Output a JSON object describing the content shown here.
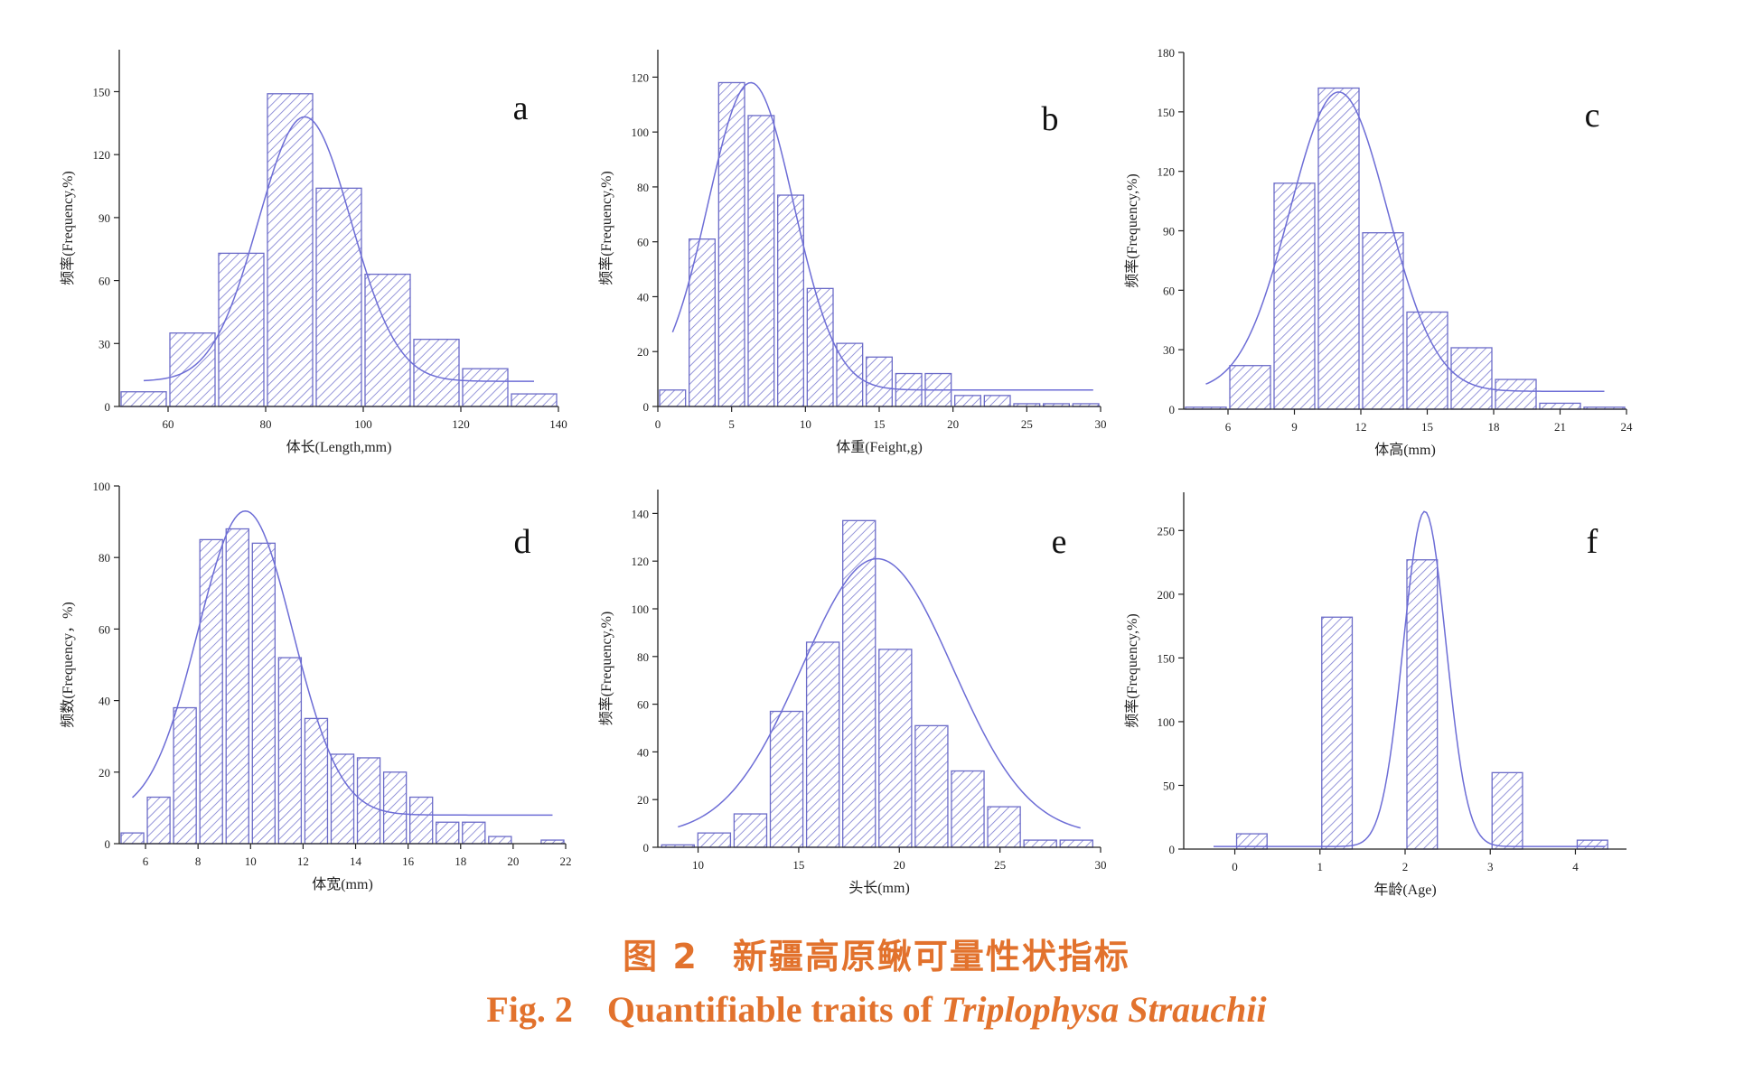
{
  "figure": {
    "caption_cn": {
      "label": "图 2",
      "text": "新疆高原鳅可量性状指标"
    },
    "caption_en": {
      "label": "Fig. 2",
      "text_plain": "Quantifiable traits of",
      "text_italic": "Triplophysa Strauchii"
    },
    "colors": {
      "bar_stroke": "#6b6bc8",
      "hatch": "#7b7bd0",
      "fit_curve": "#6d6dd6"
    }
  },
  "chart_data": [
    {
      "type": "bar",
      "panel": "a",
      "xlabel": "体长(Length,mm)",
      "ylabel": "频率(Frequency,%)",
      "xlim": [
        50,
        140
      ],
      "ylim": [
        0,
        170
      ],
      "xticks": [
        60,
        80,
        100,
        120,
        140
      ],
      "yticks": [
        0,
        30,
        60,
        90,
        120,
        150
      ],
      "bin_width": 10,
      "x": [
        55,
        65,
        75,
        85,
        95,
        105,
        115,
        125,
        135
      ],
      "values": [
        7,
        35,
        73,
        149,
        104,
        63,
        32,
        18,
        6
      ],
      "fit": {
        "type": "gauss",
        "y0": 12,
        "xc": 88,
        "w": 19,
        "A": 126,
        "range": [
          55,
          135
        ]
      }
    },
    {
      "type": "bar",
      "panel": "b",
      "xlabel": "体重(Feight,g)",
      "ylabel": "频率(Frequency,%)",
      "xlim": [
        0,
        30
      ],
      "ylim": [
        0,
        130
      ],
      "xticks": [
        0,
        5,
        10,
        15,
        20,
        25,
        30
      ],
      "yticks": [
        0,
        20,
        40,
        60,
        80,
        100,
        120
      ],
      "bin_width": 2,
      "x": [
        1,
        3,
        5,
        7,
        9,
        11,
        13,
        15,
        17,
        19,
        21,
        23,
        25,
        27,
        29
      ],
      "values": [
        6,
        61,
        118,
        106,
        77,
        43,
        23,
        18,
        12,
        12,
        4,
        4,
        1,
        1,
        1
      ],
      "fit": {
        "type": "gauss",
        "y0": 6,
        "xc": 6.3,
        "w": 5.8,
        "A": 112,
        "range": [
          1,
          29.5
        ]
      }
    },
    {
      "type": "bar",
      "panel": "c",
      "xlabel": "体高(mm)",
      "ylabel": "频率(Frequency,%)",
      "xlim": [
        4,
        24
      ],
      "ylim": [
        0,
        180
      ],
      "xticks": [
        6,
        9,
        12,
        15,
        18,
        21,
        24
      ],
      "yticks": [
        0,
        30,
        60,
        90,
        120,
        150,
        180
      ],
      "bin_width": 2,
      "x": [
        5,
        7,
        9,
        11,
        13,
        15,
        17,
        19,
        21,
        23
      ],
      "values": [
        1,
        22,
        114,
        162,
        89,
        49,
        31,
        15,
        3,
        1
      ],
      "fit": {
        "type": "gauss",
        "y0": 9,
        "xc": 11,
        "w": 4.4,
        "A": 151,
        "range": [
          5,
          23
        ]
      }
    },
    {
      "type": "bar",
      "panel": "d",
      "xlabel": "体宽(mm)",
      "ylabel": "频数(Frequency，%)",
      "xlim": [
        5,
        22
      ],
      "ylim": [
        0,
        100
      ],
      "xticks": [
        6,
        8,
        10,
        12,
        14,
        16,
        18,
        20,
        22
      ],
      "yticks": [
        0,
        20,
        40,
        60,
        80,
        100
      ],
      "bin_width": 1,
      "x": [
        5.5,
        6.5,
        7.5,
        8.5,
        9.5,
        10.5,
        11.5,
        12.5,
        13.5,
        14.5,
        15.5,
        16.5,
        17.5,
        18.5,
        19.5,
        21.5
      ],
      "values": [
        3,
        13,
        38,
        85,
        88,
        84,
        52,
        35,
        25,
        24,
        20,
        13,
        6,
        6,
        2,
        1
      ],
      "fit": {
        "type": "gauss",
        "y0": 8,
        "xc": 9.8,
        "w": 3.6,
        "A": 85,
        "range": [
          5.5,
          21.5
        ]
      }
    },
    {
      "type": "bar",
      "panel": "e",
      "xlabel": "头长(mm)",
      "ylabel": "频率(Frequency,%)",
      "xlim": [
        8,
        30
      ],
      "ylim": [
        0,
        150
      ],
      "xticks": [
        10,
        15,
        20,
        25,
        30
      ],
      "yticks": [
        0,
        20,
        40,
        60,
        80,
        100,
        120,
        140
      ],
      "bin_width": 1.8,
      "x": [
        9,
        10.8,
        12.6,
        14.4,
        16.2,
        18,
        19.8,
        21.6,
        23.4,
        25.2,
        27,
        28.8
      ],
      "values": [
        1,
        6,
        14,
        57,
        86,
        137,
        83,
        51,
        32,
        17,
        3,
        3
      ],
      "fit": {
        "type": "gauss",
        "y0": 5,
        "xc": 18.9,
        "w": 7.5,
        "A": 116,
        "range": [
          9,
          29
        ]
      }
    },
    {
      "type": "bar",
      "panel": "f",
      "xlabel": "年龄(Age)",
      "ylabel": "频率(Frequency,%)",
      "xlim": [
        -0.6,
        4.6
      ],
      "ylim": [
        0,
        280
      ],
      "xticks": [
        0,
        1,
        2,
        3,
        4
      ],
      "yticks": [
        0,
        50,
        100,
        150,
        200,
        250
      ],
      "bin_width": 0.4,
      "x": [
        0.2,
        1.2,
        2.2,
        3.2,
        4.2
      ],
      "values": [
        12,
        182,
        227,
        60,
        7
      ],
      "fit": {
        "type": "gauss",
        "y0": 2,
        "xc": 2.23,
        "w": 0.5,
        "A": 263,
        "range": [
          -0.25,
          4.35
        ]
      }
    }
  ]
}
